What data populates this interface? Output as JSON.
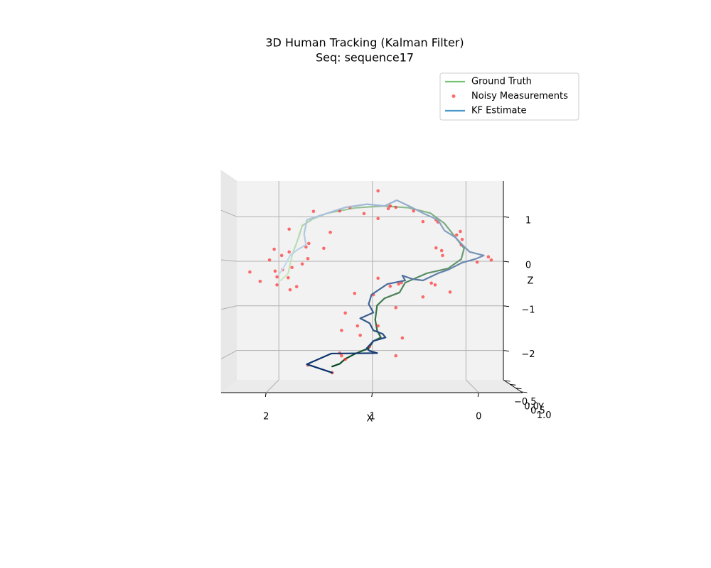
{
  "chart_data": {
    "type": "line3d",
    "title": "3D Human Tracking (Kalman Filter)",
    "subtitle": "Seq: sequence17",
    "xlabel": "X",
    "ylabel": "Y",
    "zlabel": "Z",
    "xlim": [
      2.45,
      -0.4
    ],
    "ylim": [
      -0.6,
      1.1
    ],
    "zlim": [
      -2.66,
      1.8
    ],
    "xticks": [
      0,
      1,
      2
    ],
    "yticks": [
      {
        "value": -0.5,
        "label": "−0.5"
      },
      {
        "value": 0.0,
        "label": "0.0"
      },
      {
        "value": 0.5,
        "label": "0.5"
      },
      {
        "value": 1.0,
        "label": "1.0"
      }
    ],
    "zticks": [
      {
        "value": -2,
        "label": "−2"
      },
      {
        "value": -1,
        "label": "−1"
      },
      0,
      1
    ],
    "grid": true,
    "legend": "upper right",
    "series": [
      {
        "name": "Ground Truth",
        "type": "line",
        "color": "#74c476",
        "colormap": [
          "#00441b",
          "#c7e9c0"
        ],
        "x": [
          1.43,
          1.35,
          1.29,
          1.18,
          1.04,
          0.99,
          0.91,
          0.95,
          0.97,
          0.95,
          0.87,
          0.71,
          0.65,
          0.42,
          0.19,
          0.05,
          0.02,
          0.11,
          0.23,
          0.38,
          0.61,
          0.87,
          1.18,
          1.48,
          1.63,
          1.75,
          1.79,
          1.86,
          1.9,
          1.98
        ],
        "z": [
          -2.36,
          -2.3,
          -2.19,
          -2.07,
          -1.95,
          -1.79,
          -1.71,
          -1.55,
          -1.31,
          -0.99,
          -0.83,
          -0.7,
          -0.48,
          -0.27,
          -0.16,
          0.05,
          0.29,
          0.53,
          0.85,
          1.08,
          1.2,
          1.24,
          1.2,
          1.08,
          0.96,
          0.8,
          0.53,
          0.13,
          -0.27,
          -0.43
        ]
      },
      {
        "name": "Noisy Measurements",
        "type": "scatter",
        "color": "#ff3030",
        "x": [
          0.94,
          1.63,
          1.35,
          1.24,
          1.09,
          0.94,
          0.81,
          0.83,
          0.75,
          0.56,
          0.46,
          0.32,
          0.3,
          0.06,
          0.1,
          0.04,
          0.05,
          0.32,
          0.26,
          0.25,
          -0.24,
          -0.27,
          -0.12,
          1.89,
          1.45,
          1.68,
          1.71,
          1.52,
          2.05,
          1.89,
          1.97,
          1.69,
          2.1,
          1.75,
          1.86,
          1.96,
          2.04,
          2.31,
          0.94,
          2.02,
          1.9,
          2.2,
          0.69,
          0.72,
          0.81,
          2.02,
          0.37,
          0.33,
          1.81,
          1.88,
          0.17,
          1.19,
          0.46,
          0.99,
          0.75,
          1.29,
          1.16,
          0.94,
          1.33,
          1.13,
          0.68,
          1.03,
          1.35,
          1.33,
          0.75,
          1.29,
          1.69,
          1.43
        ],
        "z": [
          1.58,
          1.12,
          1.13,
          1.21,
          1.07,
          0.96,
          1.24,
          1.18,
          1.21,
          1.13,
          0.89,
          0.93,
          0.88,
          0.67,
          0.59,
          0.49,
          0.37,
          0.3,
          0.24,
          0.13,
          0.1,
          0.03,
          -0.02,
          0.72,
          0.65,
          0.4,
          0.32,
          0.29,
          0.27,
          0.21,
          0.13,
          0.06,
          0.03,
          -0.06,
          -0.14,
          -0.19,
          -0.22,
          -0.24,
          -0.38,
          -0.35,
          -0.37,
          -0.45,
          -0.48,
          -0.51,
          -0.56,
          -0.53,
          -0.49,
          -0.53,
          -0.57,
          -0.64,
          -0.69,
          -0.72,
          -0.8,
          -0.75,
          -1.04,
          -1.16,
          -1.45,
          -1.45,
          -1.55,
          -1.66,
          -1.72,
          -1.91,
          -2.06,
          -2.12,
          -2.12,
          -2.2,
          -2.33,
          -2.5
        ]
      },
      {
        "name": "KF Estimate",
        "type": "line",
        "color": "#4a98cc",
        "colormap": [
          "#08306b",
          "#c6dbef"
        ],
        "x": [
          1.43,
          1.7,
          1.44,
          0.95,
          1.03,
          1.06,
          0.99,
          0.86,
          0.89,
          0.99,
          1.03,
          1.13,
          0.99,
          1.04,
          1.01,
          0.84,
          0.65,
          0.68,
          0.57,
          0.46,
          0.3,
          0.19,
          0.04,
          -0.1,
          -0.19,
          -0.04,
          0.04,
          0.11,
          0.23,
          0.3,
          0.46,
          0.61,
          0.74,
          0.87,
          1.06,
          1.29,
          1.48,
          1.7,
          1.73,
          1.71,
          1.8,
          1.88,
          1.94,
          1.99
        ],
        "z": [
          -2.5,
          -2.31,
          -2.07,
          -2.06,
          -2.01,
          -1.95,
          -1.79,
          -1.71,
          -1.63,
          -1.55,
          -1.39,
          -1.28,
          -1.15,
          -0.96,
          -0.75,
          -0.51,
          -0.43,
          -0.32,
          -0.4,
          -0.43,
          -0.27,
          -0.19,
          -0.03,
          0.05,
          0.13,
          0.21,
          0.37,
          0.53,
          0.69,
          0.93,
          1.08,
          1.24,
          1.37,
          1.24,
          1.28,
          1.21,
          1.08,
          0.93,
          0.61,
          0.37,
          0.26,
          0.13,
          -0.11,
          -0.27
        ]
      }
    ]
  }
}
